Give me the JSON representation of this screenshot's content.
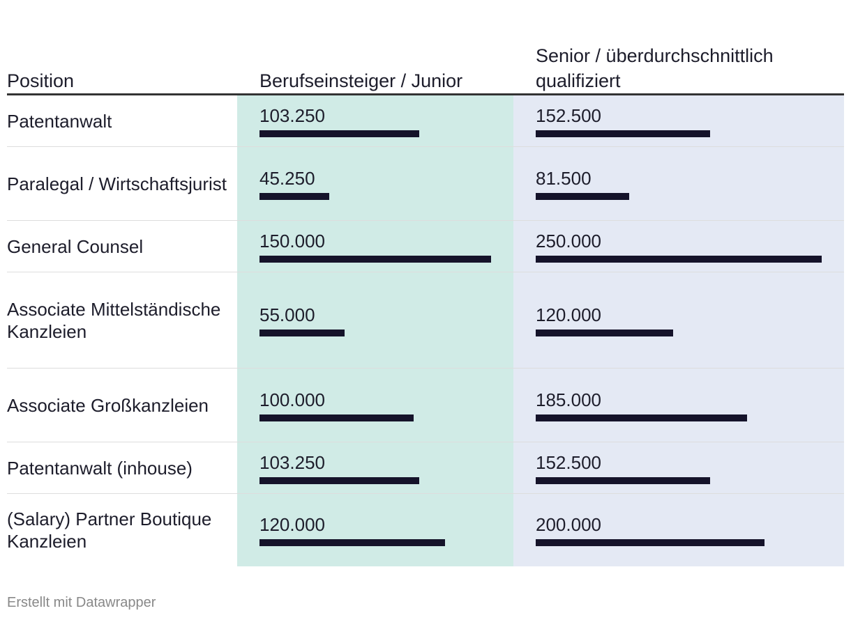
{
  "chart_data": {
    "type": "table",
    "columns": [
      "Position",
      "Berufseinsteiger / Junior",
      "Senior / überdurchschnittlich qualifiziert"
    ],
    "rows": [
      {
        "position": "Patentanwalt",
        "junior": 103250,
        "junior_label": "103.250",
        "senior": 152500,
        "senior_label": "152.500"
      },
      {
        "position": "Paralegal / Wirtschaftsjurist",
        "junior": 45250,
        "junior_label": "45.250",
        "senior": 81500,
        "senior_label": "81.500"
      },
      {
        "position": "General Counsel",
        "junior": 150000,
        "junior_label": "150.000",
        "senior": 250000,
        "senior_label": "250.000"
      },
      {
        "position": "Associate Mittelständische Kanzleien",
        "junior": 55000,
        "junior_label": "55.000",
        "senior": 120000,
        "senior_label": "120.000"
      },
      {
        "position": "Associate Großkanzleien",
        "junior": 100000,
        "junior_label": "100.000",
        "senior": 185000,
        "senior_label": "185.000"
      },
      {
        "position": "Patentanwalt (inhouse)",
        "junior": 103250,
        "junior_label": "103.250",
        "senior": 152500,
        "senior_label": "152.500"
      },
      {
        "position": "(Salary) Partner Boutique Kanzleien",
        "junior": 120000,
        "junior_label": "120.000",
        "senior": 200000,
        "senior_label": "200.000"
      }
    ],
    "colors": {
      "junior_bg": "#d0ebe6",
      "senior_bg": "#e4e9f4",
      "bar": "#15132a"
    }
  },
  "footer": "Erstellt mit Datawrapper"
}
